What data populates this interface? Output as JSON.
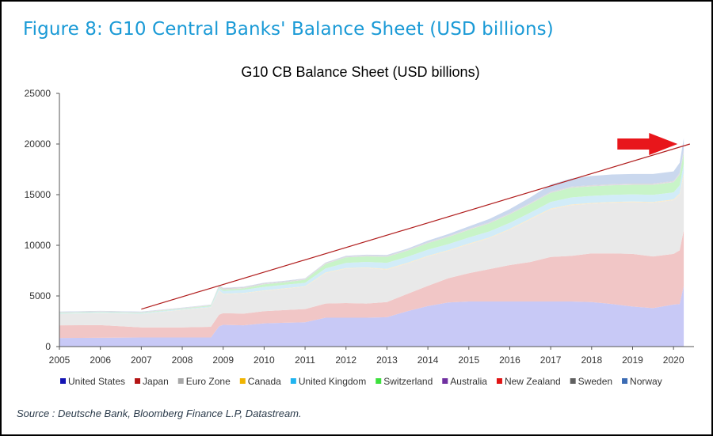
{
  "figure_title": "Figure 8: G10 Central Banks' Balance Sheet (USD billions)",
  "source": "Source : Deutsche Bank, Bloomberg Finance L.P, Datastream.",
  "colors": {
    "title": "#1a9ad6",
    "trend_line": "#b01c1c",
    "arrow": "#e8161b"
  },
  "chart_data": {
    "type": "area",
    "title": "G10 CB Balance Sheet (USD billions)",
    "xlabel": "",
    "ylabel": "",
    "stacked": true,
    "xlim": [
      2005,
      2020.5
    ],
    "ylim": [
      0,
      25000
    ],
    "x_ticks": [
      "2005",
      "2006",
      "2007",
      "2008",
      "2009",
      "2010",
      "2011",
      "2012",
      "2013",
      "2014",
      "2015",
      "2016",
      "2017",
      "2018",
      "2019",
      "2020"
    ],
    "y_ticks": [
      "0",
      "5000",
      "10000",
      "15000",
      "20000",
      "25000"
    ],
    "grid": false,
    "legend_position": "bottom",
    "x": [
      2005.0,
      2006.0,
      2007.0,
      2008.0,
      2008.7,
      2008.9,
      2009.0,
      2009.5,
      2010.0,
      2010.5,
      2011.0,
      2011.5,
      2012.0,
      2012.5,
      2013.0,
      2013.5,
      2014.0,
      2014.5,
      2015.0,
      2015.5,
      2016.0,
      2016.5,
      2017.0,
      2017.5,
      2018.0,
      2018.5,
      2019.0,
      2019.5,
      2020.0,
      2020.15,
      2020.25
    ],
    "series": [
      {
        "name": "United States",
        "color": "#c8c9f6",
        "values": [
          850,
          870,
          900,
          900,
          900,
          2000,
          2150,
          2100,
          2300,
          2350,
          2400,
          2850,
          2850,
          2850,
          2900,
          3500,
          4000,
          4350,
          4450,
          4450,
          4450,
          4450,
          4450,
          4450,
          4400,
          4200,
          3950,
          3800,
          4150,
          4200,
          6000
        ]
      },
      {
        "name": "Japan",
        "color": "#f1c6c6",
        "values": [
          1250,
          1250,
          1000,
          1000,
          1050,
          1150,
          1150,
          1150,
          1200,
          1250,
          1300,
          1400,
          1450,
          1400,
          1500,
          1700,
          2000,
          2400,
          2800,
          3200,
          3600,
          3900,
          4400,
          4500,
          4800,
          5000,
          5200,
          5100,
          5000,
          5300,
          5500
        ]
      },
      {
        "name": "Euro Zone",
        "color": "#e9e9e9",
        "values": [
          1100,
          1150,
          1300,
          1700,
          1900,
          2350,
          1850,
          2000,
          2000,
          2100,
          2200,
          3000,
          3400,
          3500,
          3200,
          3000,
          2900,
          2700,
          2850,
          3050,
          3500,
          4200,
          4700,
          5000,
          4900,
          5000,
          5100,
          5300,
          5300,
          5500,
          5400
        ]
      },
      {
        "name": "Canada",
        "color": "#fbeacb",
        "values": [
          30,
          30,
          30,
          30,
          30,
          50,
          50,
          50,
          50,
          50,
          50,
          60,
          60,
          60,
          70,
          70,
          70,
          70,
          70,
          70,
          70,
          80,
          80,
          80,
          80,
          80,
          80,
          80,
          80,
          120,
          250
        ]
      },
      {
        "name": "United Kingdom",
        "color": "#d2ecf8",
        "values": [
          80,
          80,
          80,
          80,
          100,
          250,
          300,
          300,
          350,
          350,
          350,
          400,
          500,
          550,
          600,
          600,
          600,
          600,
          600,
          600,
          600,
          600,
          650,
          700,
          700,
          700,
          700,
          700,
          700,
          800,
          900
        ]
      },
      {
        "name": "Switzerland",
        "color": "#c8f4c8",
        "values": [
          50,
          50,
          50,
          50,
          80,
          100,
          120,
          150,
          250,
          250,
          300,
          450,
          550,
          550,
          600,
          600,
          650,
          700,
          750,
          800,
          850,
          850,
          900,
          950,
          950,
          950,
          950,
          1000,
          1000,
          1050,
          1100
        ]
      },
      {
        "name": "Australia",
        "color": "#ddd0ec",
        "values": [
          20,
          20,
          20,
          20,
          20,
          30,
          30,
          30,
          30,
          30,
          30,
          30,
          30,
          30,
          30,
          30,
          30,
          30,
          30,
          30,
          30,
          30,
          30,
          30,
          30,
          30,
          30,
          30,
          40,
          80,
          200
        ]
      },
      {
        "name": "New Zealand",
        "color": "#f6d0d0",
        "values": [
          10,
          10,
          10,
          10,
          10,
          10,
          10,
          10,
          10,
          10,
          10,
          10,
          10,
          10,
          10,
          10,
          10,
          10,
          10,
          10,
          10,
          10,
          10,
          10,
          10,
          10,
          10,
          10,
          10,
          20,
          30
        ]
      },
      {
        "name": "Sweden",
        "color": "#d8d8d8",
        "values": [
          30,
          30,
          30,
          30,
          30,
          100,
          100,
          80,
          80,
          60,
          60,
          60,
          60,
          60,
          60,
          60,
          60,
          60,
          60,
          60,
          60,
          60,
          70,
          70,
          70,
          70,
          70,
          70,
          70,
          80,
          80
        ]
      },
      {
        "name": "Norway",
        "color": "#cad8ee",
        "values": [
          30,
          30,
          30,
          30,
          30,
          40,
          40,
          40,
          40,
          40,
          40,
          40,
          60,
          60,
          80,
          100,
          140,
          200,
          250,
          320,
          400,
          550,
          700,
          800,
          900,
          950,
          950,
          950,
          950,
          1000,
          1100
        ]
      }
    ],
    "legend": [
      {
        "name": "United States",
        "marker_color": "#1414b4"
      },
      {
        "name": "Japan",
        "marker_color": "#b41414"
      },
      {
        "name": "Euro Zone",
        "marker_color": "#a8a8a8"
      },
      {
        "name": "Canada",
        "marker_color": "#f0b400"
      },
      {
        "name": "United Kingdom",
        "marker_color": "#20b4f0"
      },
      {
        "name": "Switzerland",
        "marker_color": "#3ce03c"
      },
      {
        "name": "Australia",
        "marker_color": "#7030a0"
      },
      {
        "name": "New Zealand",
        "marker_color": "#e01414"
      },
      {
        "name": "Sweden",
        "marker_color": "#606060"
      },
      {
        "name": "Norway",
        "marker_color": "#3c6cb4"
      }
    ],
    "annotations": {
      "trend_line": {
        "x": [
          2007.0,
          2020.4
        ],
        "y": [
          3700,
          20000
        ]
      },
      "arrow_target": {
        "x": 2020.1,
        "y": 20000
      }
    }
  }
}
